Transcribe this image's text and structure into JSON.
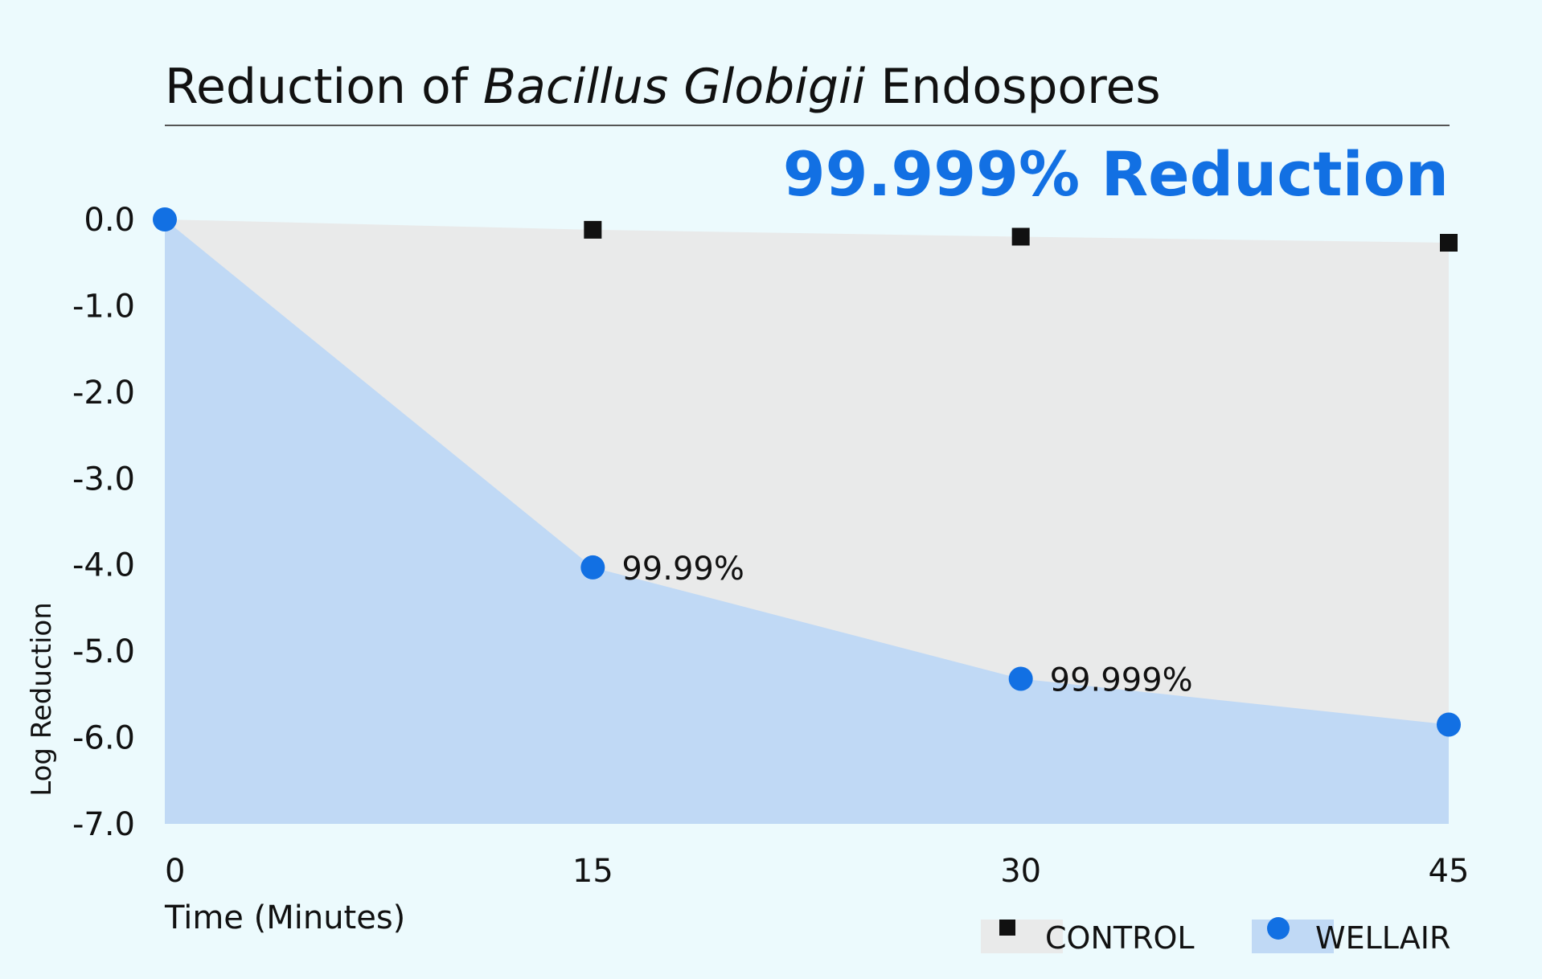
{
  "title_parts": {
    "before": "Reduction of ",
    "italic": "Bacillus Globigii",
    "after": " Endospores"
  },
  "headline": "99.999% Reduction",
  "colors": {
    "background": "#ecfafd",
    "control_area": "#e9eaea",
    "wellair_area": "#c0d9f5",
    "wellair_marker": "#1270e3",
    "control_marker": "#111111",
    "headline": "#1270e3",
    "rule": "#555555"
  },
  "chart_data": {
    "type": "area",
    "title": "Reduction of Bacillus Globigii Endospores",
    "xlabel": "Time (Minutes)",
    "ylabel": "Log Reduction",
    "x": [
      0,
      15,
      30,
      45
    ],
    "x_tick_labels": [
      "0",
      "15",
      "30",
      "45"
    ],
    "y_tick_labels": [
      "0.0",
      "-1.0",
      "-2.0",
      "-3.0",
      "-4.0",
      "-5.0",
      "-6.0",
      "-7.0"
    ],
    "ylim": [
      -7.0,
      0.0
    ],
    "grid": false,
    "legend": "bottom-right",
    "series": [
      {
        "name": "CONTROL",
        "marker": "square",
        "values": [
          0.0,
          -0.12,
          -0.2,
          -0.27
        ],
        "point_labels": [
          "",
          "",
          "",
          ""
        ]
      },
      {
        "name": "WELLAIR",
        "marker": "circle",
        "values": [
          0.0,
          -4.03,
          -5.32,
          -5.85
        ],
        "point_labels": [
          "",
          "99.99%",
          "99.999%",
          ""
        ]
      }
    ]
  }
}
